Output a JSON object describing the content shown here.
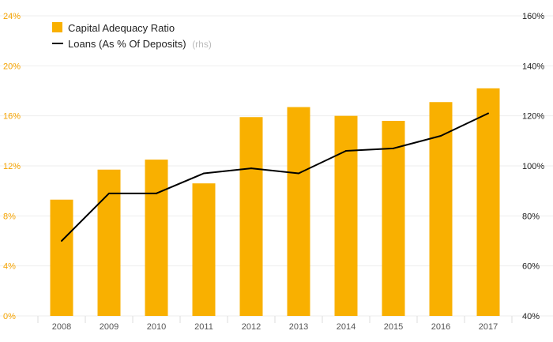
{
  "colors": {
    "bar": "#F9B000",
    "line": "#000000",
    "left_axis_text": "#F5A300",
    "grid": "#EEEEEE"
  },
  "chart_data": {
    "type": "bar+line",
    "title": "",
    "categories": [
      "2008",
      "2009",
      "2010",
      "2011",
      "2012",
      "2013",
      "2014",
      "2015",
      "2016",
      "2017"
    ],
    "series": [
      {
        "name": "Capital Adequacy Ratio",
        "type": "bar",
        "axis": "left",
        "values": [
          9.3,
          11.7,
          12.5,
          10.6,
          15.9,
          16.7,
          16.0,
          15.6,
          17.1,
          18.2
        ]
      },
      {
        "name": "Loans (As % Of Deposits)",
        "name_note": "(rhs)",
        "type": "line",
        "axis": "right",
        "values": [
          70,
          89,
          89,
          97,
          99,
          97,
          106,
          107,
          112,
          121
        ]
      }
    ],
    "y_left": {
      "range": [
        0,
        24
      ],
      "ticks": [
        0,
        4,
        8,
        12,
        16,
        20,
        24
      ],
      "tick_labels": [
        "0%",
        "4%",
        "8%",
        "12%",
        "16%",
        "20%",
        "24%"
      ]
    },
    "y_right": {
      "range": [
        40,
        160
      ],
      "ticks": [
        40,
        60,
        80,
        100,
        120,
        140,
        160
      ],
      "tick_labels": [
        "40%",
        "60%",
        "80%",
        "100%",
        "120%",
        "140%",
        "160%"
      ]
    },
    "xlabel": "",
    "ylabel": "",
    "grid": true,
    "legend_position": "top-left"
  }
}
